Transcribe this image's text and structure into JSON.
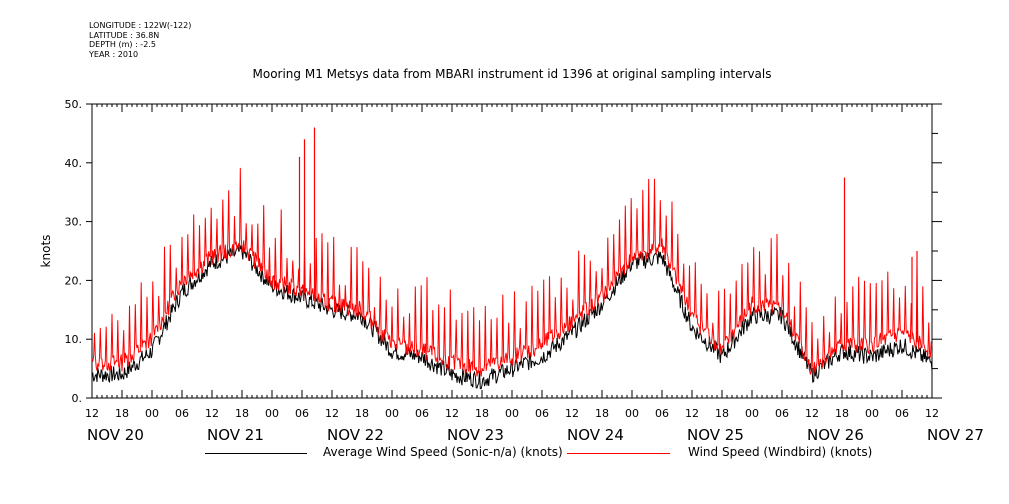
{
  "header": {
    "longitude": "LONGITUDE : 122W(-122)",
    "latitude": "LATITUDE : 36.8N",
    "depth": "DEPTH (m) : -2.5",
    "year": "YEAR : 2010"
  },
  "chart_data": {
    "type": "line",
    "title": "Mooring M1 Metsys data from MBARI instrument id 1396 at original sampling intervals",
    "xlabel": "",
    "ylabel": "knots",
    "x_range_hours": [
      "NOV 20 12:00",
      "NOV 27 12:00"
    ],
    "ylim": [
      0,
      50
    ],
    "yticks": [
      0,
      10,
      20,
      30,
      40,
      50
    ],
    "ytick_labels": [
      "0.",
      "10.",
      "20.",
      "30.",
      "40.",
      "50."
    ],
    "xtick_labels": [
      "12",
      "18",
      "00",
      "06",
      "12",
      "18",
      "00",
      "06",
      "12",
      "18",
      "00",
      "06",
      "12",
      "18",
      "00",
      "06",
      "12",
      "18",
      "00",
      "06",
      "12",
      "18",
      "00",
      "06",
      "12",
      "18",
      "00",
      "06",
      "12"
    ],
    "day_labels": [
      "NOV 20",
      "NOV 21",
      "NOV 22",
      "NOV 23",
      "NOV 24",
      "NOV 25",
      "NOV 26",
      "NOV 27"
    ],
    "grid": false,
    "legend_position": "bottom",
    "series": [
      {
        "name": "Average Wind Speed (Sonic-n/a) (knots)",
        "color": "#000000",
        "x_hours": [
          0,
          6,
          12,
          18,
          24,
          30,
          36,
          42,
          48,
          54,
          60,
          66,
          72,
          78,
          84,
          90,
          96,
          102,
          108,
          114,
          120,
          126,
          132,
          138,
          144,
          150,
          156,
          162,
          168
        ],
        "values": [
          4,
          4,
          8,
          18,
          23,
          25,
          19,
          17,
          15,
          14,
          8,
          7,
          4,
          3,
          5,
          7,
          11,
          16,
          23,
          24,
          12,
          7,
          14,
          14,
          4,
          8,
          7,
          9,
          6
        ]
      },
      {
        "name": "Wind Speed (Windbird) (knots)",
        "color": "#ff0000",
        "x_hours": [
          0,
          6,
          12,
          18,
          24,
          30,
          36,
          42,
          48,
          54,
          60,
          66,
          72,
          78,
          84,
          90,
          96,
          102,
          108,
          114,
          120,
          126,
          132,
          138,
          144,
          150,
          156,
          162,
          168
        ],
        "values": [
          6,
          6,
          10,
          20,
          24,
          26,
          20,
          18,
          16,
          15,
          9,
          8,
          6,
          5,
          7,
          9,
          13,
          17,
          24,
          26,
          14,
          8,
          16,
          15,
          5,
          9,
          9,
          11,
          8
        ],
        "spikes": [
          {
            "x_hours": 41.5,
            "value": 41
          },
          {
            "x_hours": 42.5,
            "value": 44
          },
          {
            "x_hours": 44.5,
            "value": 46
          },
          {
            "x_hours": 150.5,
            "value": 37.5
          },
          {
            "x_hours": 164,
            "value": 24
          },
          {
            "x_hours": 165,
            "value": 25
          }
        ]
      }
    ]
  }
}
